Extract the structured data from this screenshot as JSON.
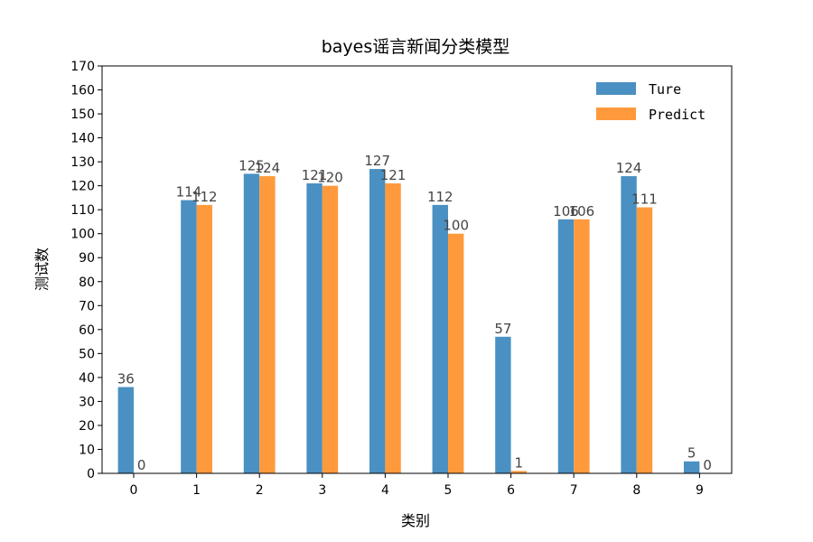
{
  "chart_data": {
    "type": "bar",
    "title": "bayes谣言新闻分类模型",
    "xlabel": "类别",
    "ylabel": "测试数",
    "categories": [
      "0",
      "1",
      "2",
      "3",
      "4",
      "5",
      "6",
      "7",
      "8",
      "9"
    ],
    "series": [
      {
        "name": "Ture",
        "color": "#4a90c2",
        "values": [
          36,
          114,
          125,
          121,
          127,
          112,
          57,
          106,
          124,
          5
        ]
      },
      {
        "name": "Predict",
        "color": "#ff9a3c",
        "values": [
          0,
          112,
          124,
          120,
          121,
          100,
          1,
          106,
          111,
          0
        ]
      }
    ],
    "ylim": [
      0,
      170
    ],
    "yticks": [
      0,
      10,
      20,
      30,
      40,
      50,
      60,
      70,
      80,
      90,
      100,
      110,
      120,
      130,
      140,
      150,
      160,
      170
    ],
    "legend": "top-right",
    "grid": false
  }
}
